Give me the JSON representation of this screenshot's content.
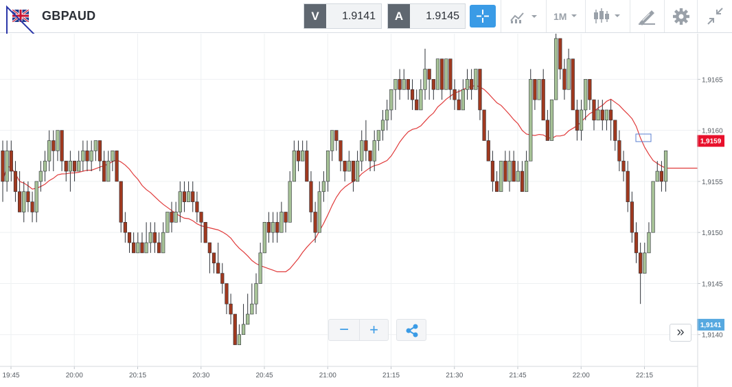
{
  "toolbar": {
    "symbol": "GBPAUD",
    "bid_label": "V",
    "bid_value": "1.9141",
    "ask_label": "A",
    "ask_value": "1.9145",
    "timeframe": "1M",
    "colors": {
      "accent": "#3a9be6",
      "label_bg": "#5f6770"
    }
  },
  "chart_data": {
    "type": "candlestick",
    "timeframe": "1M",
    "x_ticks": [
      "19:45",
      "20:00",
      "20:15",
      "20:30",
      "20:45",
      "21:00",
      "21:15",
      "21:30",
      "21:45",
      "22:00",
      "22:15"
    ],
    "y_ticks": [
      "1,9140",
      "1,9145",
      "1,9150",
      "1,9155",
      "1,9160",
      "1,9165"
    ],
    "ylim": [
      1.91385,
      1.91692
    ],
    "grid": true,
    "up_color": "#a7c297",
    "down_color": "#a0391f",
    "ma_color": "#e03a3a",
    "price_tags": [
      {
        "label": "1,9159",
        "value": 1.9159,
        "color": "#e8102b"
      },
      {
        "label": "1,9141",
        "value": 1.9141,
        "color": "#56a8e0"
      }
    ],
    "candles": [
      [
        1.9158,
        1.9155,
        1.9159,
        1.9153
      ],
      [
        1.9155,
        1.9158,
        1.9159,
        1.9154
      ],
      [
        1.9158,
        1.9156,
        1.9159,
        1.9155
      ],
      [
        1.9156,
        1.9154,
        1.9157,
        1.9153
      ],
      [
        1.9154,
        1.9152,
        1.9156,
        1.9152
      ],
      [
        1.9152,
        1.9154,
        1.9155,
        1.9151
      ],
      [
        1.9154,
        1.9153,
        1.9155,
        1.9152
      ],
      [
        1.9153,
        1.9152,
        1.9154,
        1.9151
      ],
      [
        1.9152,
        1.9155,
        1.9155,
        1.9151
      ],
      [
        1.9155,
        1.9156,
        1.9157,
        1.9154
      ],
      [
        1.9156,
        1.9157,
        1.9158,
        1.9155
      ],
      [
        1.9157,
        1.9159,
        1.916,
        1.9156
      ],
      [
        1.9159,
        1.9158,
        1.916,
        1.9156
      ],
      [
        1.9158,
        1.916,
        1.916,
        1.9157
      ],
      [
        1.916,
        1.9157,
        1.916,
        1.9156
      ],
      [
        1.9157,
        1.9156,
        1.9157,
        1.9155
      ],
      [
        1.9156,
        1.9157,
        1.9158,
        1.9154
      ],
      [
        1.9157,
        1.9156,
        1.9157,
        1.9155
      ],
      [
        1.9156,
        1.9157,
        1.9158,
        1.9156
      ],
      [
        1.9157,
        1.9158,
        1.9159,
        1.9156
      ],
      [
        1.9158,
        1.9157,
        1.9159,
        1.9156
      ],
      [
        1.9157,
        1.9158,
        1.9159,
        1.9156
      ],
      [
        1.9158,
        1.9159,
        1.9159,
        1.9157
      ],
      [
        1.9159,
        1.9157,
        1.9159,
        1.9156
      ],
      [
        1.9157,
        1.9155,
        1.9158,
        1.9155
      ],
      [
        1.9155,
        1.9157,
        1.9158,
        1.9155
      ],
      [
        1.9157,
        1.9158,
        1.9158,
        1.9156
      ],
      [
        1.9158,
        1.9155,
        1.9158,
        1.9155
      ],
      [
        1.9155,
        1.9151,
        1.9155,
        1.915
      ],
      [
        1.9151,
        1.915,
        1.9152,
        1.9149
      ],
      [
        1.915,
        1.9149,
        1.915,
        1.9148
      ],
      [
        1.9149,
        1.9148,
        1.915,
        1.9148
      ],
      [
        1.9148,
        1.9149,
        1.915,
        1.9148
      ],
      [
        1.9149,
        1.9148,
        1.915,
        1.9148
      ],
      [
        1.9148,
        1.9149,
        1.9151,
        1.9148
      ],
      [
        1.9149,
        1.915,
        1.9151,
        1.9148
      ],
      [
        1.915,
        1.9149,
        1.9151,
        1.9148
      ],
      [
        1.9149,
        1.9148,
        1.915,
        1.9148
      ],
      [
        1.9148,
        1.915,
        1.9151,
        1.9148
      ],
      [
        1.915,
        1.9152,
        1.9152,
        1.915
      ],
      [
        1.9152,
        1.9151,
        1.9153,
        1.915
      ],
      [
        1.9151,
        1.9152,
        1.9153,
        1.9151
      ],
      [
        1.9152,
        1.9154,
        1.9155,
        1.9151
      ],
      [
        1.9154,
        1.9153,
        1.9155,
        1.9152
      ],
      [
        1.9153,
        1.9154,
        1.9155,
        1.9153
      ],
      [
        1.9154,
        1.9153,
        1.9155,
        1.9152
      ],
      [
        1.9153,
        1.9152,
        1.9154,
        1.9151
      ],
      [
        1.9152,
        1.9151,
        1.9152,
        1.9149
      ],
      [
        1.9151,
        1.9149,
        1.9151,
        1.9149
      ],
      [
        1.9149,
        1.9148,
        1.9149,
        1.9146
      ],
      [
        1.9148,
        1.9147,
        1.9148,
        1.9146
      ],
      [
        1.9147,
        1.9146,
        1.9149,
        1.9146
      ],
      [
        1.9146,
        1.9145,
        1.9147,
        1.9144
      ],
      [
        1.9145,
        1.9143,
        1.9145,
        1.9142
      ],
      [
        1.9143,
        1.9142,
        1.9144,
        1.9141
      ],
      [
        1.9142,
        1.9139,
        1.9142,
        1.9139
      ],
      [
        1.9139,
        1.914,
        1.9141,
        1.9139
      ],
      [
        1.914,
        1.9141,
        1.9143,
        1.914
      ],
      [
        1.9141,
        1.9142,
        1.9144,
        1.9141
      ],
      [
        1.9142,
        1.9143,
        1.9145,
        1.9142
      ],
      [
        1.9143,
        1.9145,
        1.9146,
        1.9142
      ],
      [
        1.9145,
        1.9148,
        1.9149,
        1.9145
      ],
      [
        1.9148,
        1.9151,
        1.9151,
        1.9148
      ],
      [
        1.9151,
        1.915,
        1.9152,
        1.9149
      ],
      [
        1.915,
        1.9151,
        1.9152,
        1.9149
      ],
      [
        1.9151,
        1.915,
        1.9152,
        1.9149
      ],
      [
        1.915,
        1.9152,
        1.9153,
        1.915
      ],
      [
        1.9152,
        1.9151,
        1.9152,
        1.915
      ],
      [
        1.9151,
        1.9155,
        1.9156,
        1.9151
      ],
      [
        1.9155,
        1.9158,
        1.9159,
        1.9155
      ],
      [
        1.9158,
        1.9157,
        1.9159,
        1.9156
      ],
      [
        1.9157,
        1.9158,
        1.9159,
        1.9157
      ],
      [
        1.9158,
        1.9155,
        1.9159,
        1.9155
      ],
      [
        1.9155,
        1.9152,
        1.9156,
        1.9151
      ],
      [
        1.9152,
        1.915,
        1.9153,
        1.9149
      ],
      [
        1.915,
        1.9154,
        1.9155,
        1.915
      ],
      [
        1.9154,
        1.9155,
        1.9156,
        1.9153
      ],
      [
        1.9155,
        1.9158,
        1.9158,
        1.9154
      ],
      [
        1.9158,
        1.916,
        1.916,
        1.9157
      ],
      [
        1.916,
        1.9159,
        1.916,
        1.9158
      ],
      [
        1.9159,
        1.9157,
        1.9159,
        1.9156
      ],
      [
        1.9157,
        1.9156,
        1.9157,
        1.9155
      ],
      [
        1.9156,
        1.9157,
        1.9158,
        1.9156
      ],
      [
        1.9157,
        1.9155,
        1.9157,
        1.9154
      ],
      [
        1.9155,
        1.9157,
        1.9158,
        1.9155
      ],
      [
        1.9157,
        1.9159,
        1.916,
        1.9156
      ],
      [
        1.9159,
        1.9158,
        1.9161,
        1.9157
      ],
      [
        1.9158,
        1.9157,
        1.9158,
        1.9156
      ],
      [
        1.9157,
        1.9159,
        1.916,
        1.9156
      ],
      [
        1.9159,
        1.916,
        1.916,
        1.9158
      ],
      [
        1.916,
        1.9161,
        1.9162,
        1.9159
      ],
      [
        1.9161,
        1.9162,
        1.9163,
        1.916
      ],
      [
        1.9162,
        1.9164,
        1.9164,
        1.9161
      ],
      [
        1.9164,
        1.9165,
        1.9165,
        1.9162
      ],
      [
        1.9165,
        1.9164,
        1.9166,
        1.9163
      ],
      [
        1.9164,
        1.9165,
        1.9166,
        1.9164
      ],
      [
        1.9165,
        1.9164,
        1.9165,
        1.9163
      ],
      [
        1.9164,
        1.9163,
        1.9165,
        1.9162
      ],
      [
        1.9163,
        1.9162,
        1.9164,
        1.9162
      ],
      [
        1.9162,
        1.9164,
        1.9165,
        1.9162
      ],
      [
        1.9164,
        1.9166,
        1.9168,
        1.9163
      ],
      [
        1.9166,
        1.9165,
        1.9166,
        1.9163
      ],
      [
        1.9165,
        1.9164,
        1.9165,
        1.9163
      ],
      [
        1.9164,
        1.9167,
        1.9167,
        1.9164
      ],
      [
        1.9167,
        1.9164,
        1.9167,
        1.9163
      ],
      [
        1.9164,
        1.9167,
        1.9167,
        1.9164
      ],
      [
        1.9167,
        1.9164,
        1.9167,
        1.9163
      ],
      [
        1.9164,
        1.9163,
        1.9165,
        1.9162
      ],
      [
        1.9163,
        1.9162,
        1.9164,
        1.9162
      ],
      [
        1.9162,
        1.9164,
        1.9165,
        1.9162
      ],
      [
        1.9164,
        1.9165,
        1.9166,
        1.9163
      ],
      [
        1.9165,
        1.9164,
        1.9166,
        1.9163
      ],
      [
        1.9164,
        1.9166,
        1.9166,
        1.9164
      ],
      [
        1.9166,
        1.9162,
        1.9166,
        1.9161
      ],
      [
        1.9162,
        1.9159,
        1.9162,
        1.9159
      ],
      [
        1.9159,
        1.9157,
        1.916,
        1.9157
      ],
      [
        1.9157,
        1.9155,
        1.9158,
        1.9154
      ],
      [
        1.9155,
        1.9154,
        1.9156,
        1.9154
      ],
      [
        1.9154,
        1.9157,
        1.9157,
        1.9154
      ],
      [
        1.9157,
        1.9155,
        1.9158,
        1.9155
      ],
      [
        1.9155,
        1.9157,
        1.9158,
        1.9154
      ],
      [
        1.9157,
        1.9155,
        1.9158,
        1.9155
      ],
      [
        1.9155,
        1.9156,
        1.9157,
        1.9155
      ],
      [
        1.9156,
        1.9154,
        1.9157,
        1.9154
      ],
      [
        1.9154,
        1.9157,
        1.9158,
        1.9154
      ],
      [
        1.9157,
        1.9165,
        1.9166,
        1.9157
      ],
      [
        1.9165,
        1.9163,
        1.9165,
        1.9162
      ],
      [
        1.9163,
        1.9165,
        1.9165,
        1.9163
      ],
      [
        1.9165,
        1.9161,
        1.9166,
        1.9161
      ],
      [
        1.9161,
        1.9159,
        1.9162,
        1.9159
      ],
      [
        1.9159,
        1.9163,
        1.9163,
        1.9159
      ],
      [
        1.9163,
        1.9169,
        1.917,
        1.9163
      ],
      [
        1.9169,
        1.9166,
        1.9169,
        1.9165
      ],
      [
        1.9166,
        1.9164,
        1.9167,
        1.9163
      ],
      [
        1.9164,
        1.9167,
        1.9168,
        1.9164
      ],
      [
        1.9167,
        1.9162,
        1.9167,
        1.9162
      ],
      [
        1.9162,
        1.916,
        1.9163,
        1.9159
      ],
      [
        1.916,
        1.9162,
        1.9163,
        1.9159
      ],
      [
        1.9162,
        1.9165,
        1.9165,
        1.9161
      ],
      [
        1.9165,
        1.9163,
        1.9165,
        1.9162
      ],
      [
        1.9163,
        1.9161,
        1.9163,
        1.916
      ],
      [
        1.9161,
        1.9162,
        1.9163,
        1.9161
      ],
      [
        1.9162,
        1.9161,
        1.9163,
        1.916
      ],
      [
        1.9161,
        1.9162,
        1.9162,
        1.916
      ],
      [
        1.9162,
        1.9161,
        1.9163,
        1.9159
      ],
      [
        1.9161,
        1.9159,
        1.9161,
        1.9158
      ],
      [
        1.9159,
        1.9157,
        1.916,
        1.9156
      ],
      [
        1.9157,
        1.9156,
        1.9158,
        1.9155
      ],
      [
        1.9156,
        1.9153,
        1.9157,
        1.9152
      ],
      [
        1.9153,
        1.915,
        1.9154,
        1.9149
      ],
      [
        1.915,
        1.9148,
        1.9151,
        1.9147
      ],
      [
        1.9148,
        1.9146,
        1.9149,
        1.9143
      ],
      [
        1.9146,
        1.9148,
        1.9149,
        1.9146
      ],
      [
        1.9148,
        1.915,
        1.9151,
        1.9148
      ],
      [
        1.915,
        1.9155,
        1.9155,
        1.915
      ],
      [
        1.9155,
        1.9156,
        1.9157,
        1.9155
      ],
      [
        1.9156,
        1.9155,
        1.9157,
        1.9154
      ],
      [
        1.9155,
        1.9158,
        1.9158,
        1.9154
      ]
    ]
  }
}
